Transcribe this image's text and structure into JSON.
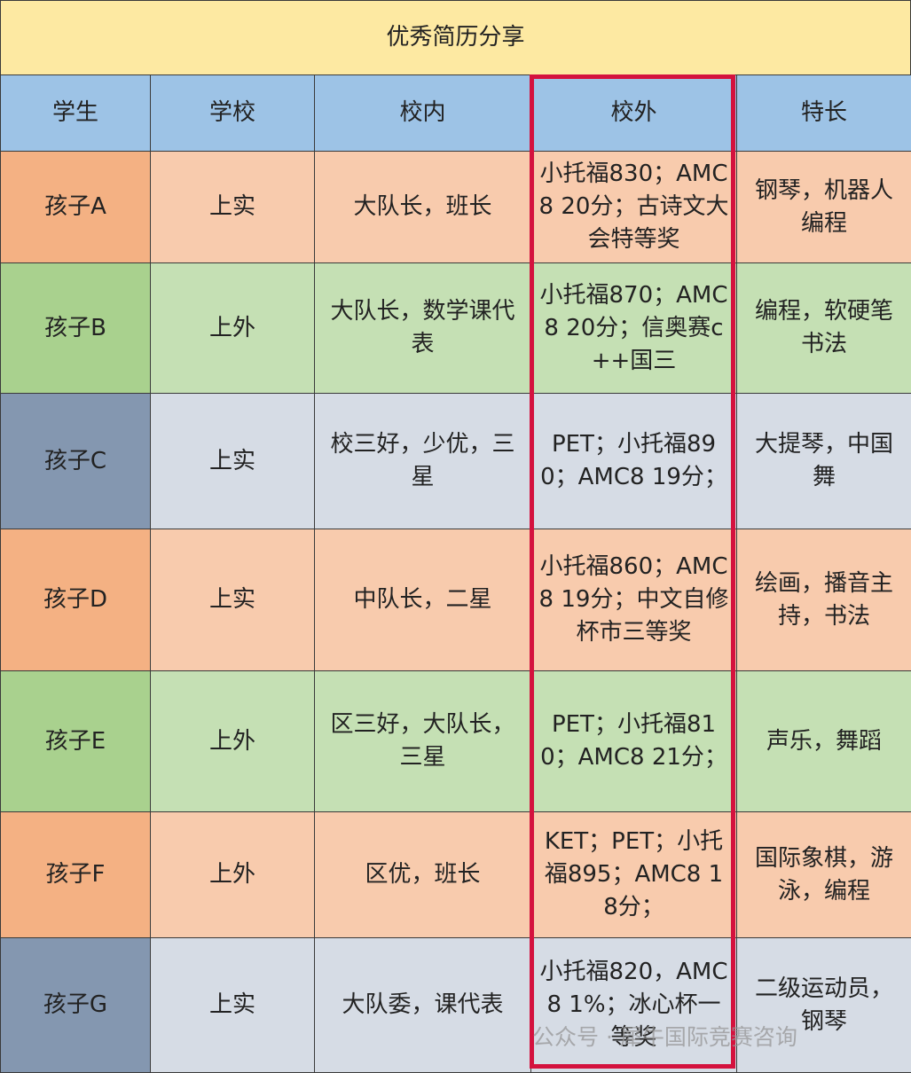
{
  "title": "优秀简历分享",
  "table": {
    "header": [
      "学生",
      "学校",
      "校内",
      "校外",
      "特长"
    ],
    "rows": [
      [
        "孩子A",
        "上实",
        "大队长，班长",
        "小托福830；AMC8 20分；古诗文大会特等奖",
        "钢琴，机器人编程"
      ],
      [
        "孩子B",
        "上外",
        "大队长，数学课代表",
        "小托福870；AMC8 20分；信奥赛c++国三",
        "编程，软硬笔书法"
      ],
      [
        "孩子C",
        "上实",
        "校三好，少优，三星",
        "PET；小托福890；AMC8 19分；",
        "大提琴，中国舞"
      ],
      [
        "孩子D",
        "上实",
        "中队长，二星",
        "小托福860；AMC8 19分；中文自修杯市三等奖",
        "绘画，播音主持，书法"
      ],
      [
        "孩子E",
        "上外",
        "区三好，大队长，三星",
        "PET；小托福810；AMC8 21分；",
        "声乐，舞蹈"
      ],
      [
        "孩子F",
        "上外",
        "区优，班长",
        "KET；PET；小托福895；AMC8 18分；",
        "国际象棋，游泳，编程"
      ],
      [
        "孩子G",
        "上实",
        "大队委，课代表",
        "小托福820，AMC8 1%；冰心杯一等奖",
        "二级运动员，钢琴"
      ]
    ]
  },
  "watermark": "公众号 · 犀牛国际竞赛咨询"
}
